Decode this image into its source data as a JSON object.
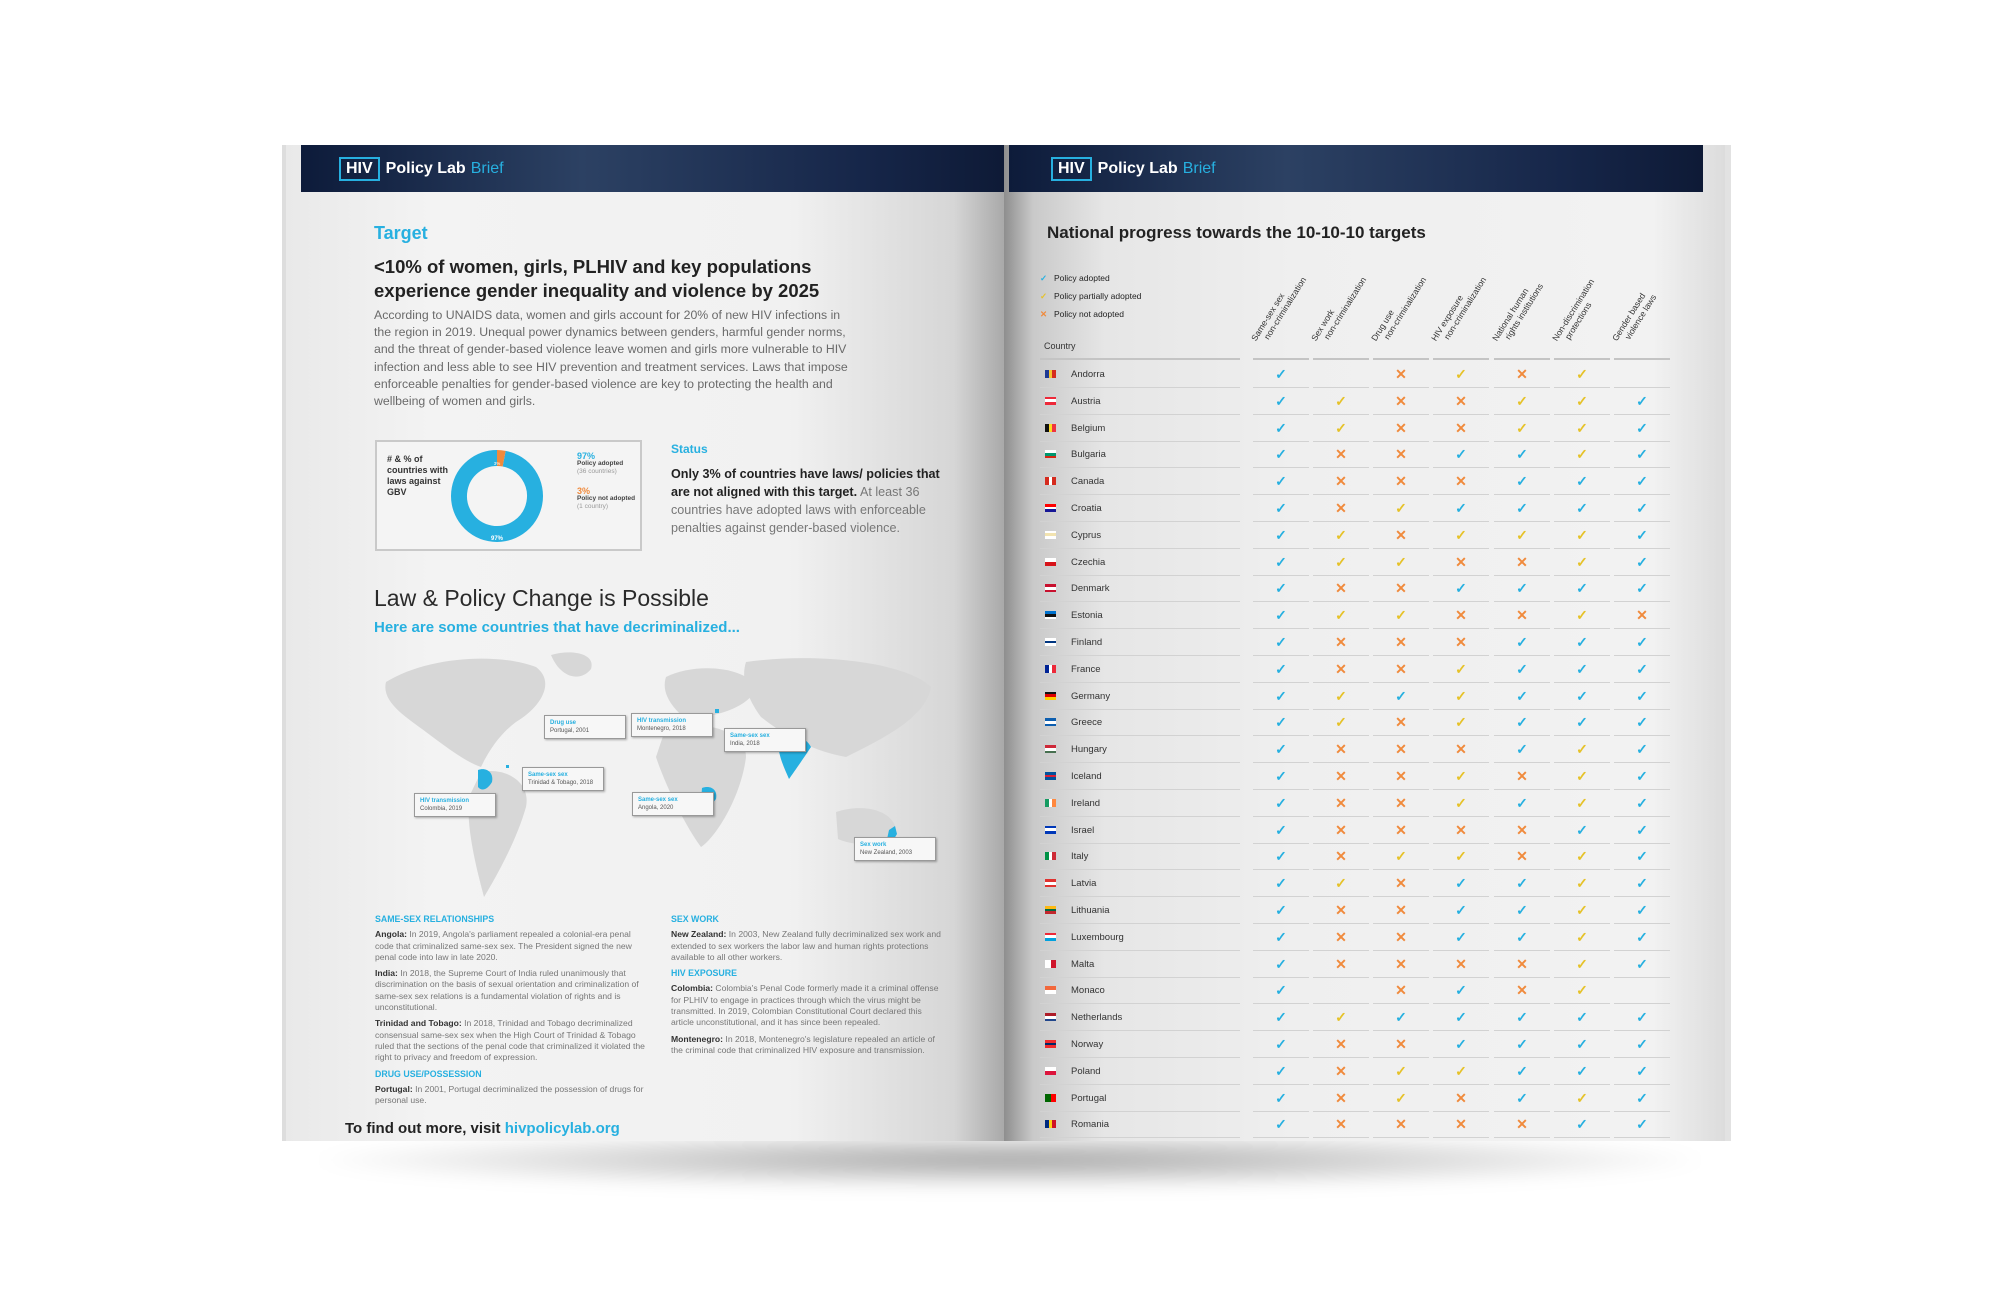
{
  "brand": {
    "box": "HIV",
    "name": "Policy Lab",
    "suffix": "Brief"
  },
  "colors": {
    "adopted": "#27b0e0",
    "partial": "#e6c229",
    "not": "#f08a3c",
    "navy": "#13234a"
  },
  "left": {
    "target_label": "Target",
    "headline": "<10% of women, girls, PLHIV and key populations experience gender inequality and violence by 2025",
    "body": "According to UNAIDS data, women and girls account for 20% of new HIV infections in the region in 2019. Unequal power dynamics between genders, harmful gender norms, and the threat of gender-based violence leave women and girls more vulnerable to HIV infection and less able to see HIV prevention and treatment services. Laws that impose enforceable penalties for gender-based violence are key to protecting the health and wellbeing of women and girls.",
    "donut": {
      "label": "# & % of countries with laws against GBV",
      "adopted_pct": 97,
      "not_pct": 3,
      "adopted_pct_label": "97%",
      "adopted_label": "Policy adopted",
      "adopted_count": "(36 countries)",
      "not_pct_label": "3%",
      "not_label": "Policy not adopted",
      "not_count": "(1 country)",
      "center_label": "97%",
      "slice_label": "3%"
    },
    "status_heading": "Status",
    "status_bold": "Only 3% of countries have laws/ policies that are not aligned with this target.",
    "status_rest": " At least 36 countries have adopted laws with enforceable penalties against gender-based violence.",
    "law_title": "Law & Policy Change is Possible",
    "law_sub": "Here are some countries that have decriminalized...",
    "callouts": [
      {
        "title": "Drug use",
        "text": "Portugal, 2001"
      },
      {
        "title": "HIV transmission",
        "text": "Montenegro, 2018"
      },
      {
        "title": "Same-sex sex",
        "text": "India, 2018"
      },
      {
        "title": "Same-sex sex",
        "text": "Trinidad & Tobago, 2018"
      },
      {
        "title": "HIV transmission",
        "text": "Colombia, 2019"
      },
      {
        "title": "Same-sex sex",
        "text": "Angola, 2020"
      },
      {
        "title": "Sex work",
        "text": "New Zealand, 2003"
      }
    ],
    "sections": {
      "same_sex": {
        "heading": "SAME-SEX RELATIONSHIPS",
        "items": [
          {
            "country": "Angola:",
            "text": " In 2019, Angola's parliament repealed a colonial-era penal code that criminalized same-sex sex. The President signed the new penal code into law in late 2020."
          },
          {
            "country": "India:",
            "text": " In 2018, the Supreme Court of India ruled unanimously that discrimination on the basis of sexual orientation and criminalization of same-sex sex relations is a fundamental violation of rights and is unconstitutional."
          },
          {
            "country": "Trinidad and Tobago:",
            "text": " In 2018, Trinidad and Tobago decriminalized consensual same-sex sex when the High Court of Trinidad & Tobago ruled that the sections of the penal code that criminalized it violated the right to privacy and freedom of expression."
          }
        ]
      },
      "drug": {
        "heading": "DRUG USE/POSSESSION",
        "items": [
          {
            "country": "Portugal:",
            "text": " In 2001, Portugal decriminalized the possession of drugs for personal use."
          }
        ]
      },
      "sex_work": {
        "heading": "SEX WORK",
        "items": [
          {
            "country": "New Zealand:",
            "text": " In 2003, New Zealand fully decriminalized sex work and extended to sex workers the labor law and human rights protections available to all other workers."
          }
        ]
      },
      "hiv": {
        "heading": "HIV EXPOSURE",
        "items": [
          {
            "country": "Colombia:",
            "text": " Colombia's Penal Code formerly made it a criminal offense for PLHIV to engage in practices through which the virus might be transmitted. In 2019, Colombian Constitutional Court declared this article unconstitutional, and it has since been repealed."
          },
          {
            "country": "Montenegro:",
            "text": " In 2018, Montenegro's legislature repealed an article of the criminal code that criminalized HIV exposure and transmission."
          }
        ]
      }
    },
    "footer_text": "To find out more, visit ",
    "footer_link": "hivpolicylab.org"
  },
  "right": {
    "title": "National progress towards the 10-10-10 targets",
    "legend": [
      {
        "key": "a",
        "label": "Policy adopted"
      },
      {
        "key": "p",
        "label": "Policy partially adopted"
      },
      {
        "key": "n",
        "label": "Policy not adopted"
      }
    ],
    "country_header": "Country",
    "columns": [
      [
        "Same-sex sex",
        "non-criminalization"
      ],
      [
        "Sex work",
        "non-criminalization"
      ],
      [
        "Drug use",
        "non-criminalization"
      ],
      [
        "HIV exposure",
        "non-criminalization"
      ],
      [
        "National human",
        "rights institutions"
      ],
      [
        "Non-discrimination",
        "protections"
      ],
      [
        "Gender based",
        "violence laws"
      ]
    ],
    "rows": [
      {
        "country": "Andorra",
        "flag": {
          "dir": "v",
          "c": [
            "#1f3a93",
            "#f4c430",
            "#d52b1e"
          ]
        },
        "s": [
          "a",
          "",
          "n",
          "p",
          "n",
          "p",
          ""
        ]
      },
      {
        "country": "Austria",
        "flag": {
          "dir": "h",
          "c": [
            "#ed2939",
            "#ffffff",
            "#ed2939"
          ]
        },
        "s": [
          "a",
          "p",
          "n",
          "n",
          "p",
          "p",
          "a"
        ]
      },
      {
        "country": "Belgium",
        "flag": {
          "dir": "v",
          "c": [
            "#111111",
            "#fdda24",
            "#ef3340"
          ]
        },
        "s": [
          "a",
          "p",
          "n",
          "n",
          "p",
          "p",
          "a"
        ]
      },
      {
        "country": "Bulgaria",
        "flag": {
          "dir": "h",
          "c": [
            "#ffffff",
            "#00966e",
            "#d62612"
          ]
        },
        "s": [
          "a",
          "n",
          "n",
          "a",
          "a",
          "p",
          "a"
        ]
      },
      {
        "country": "Canada",
        "flag": {
          "dir": "v",
          "c": [
            "#d52b1e",
            "#ffffff",
            "#d52b1e"
          ]
        },
        "s": [
          "a",
          "n",
          "n",
          "n",
          "a",
          "a",
          "a"
        ]
      },
      {
        "country": "Croatia",
        "flag": {
          "dir": "h",
          "c": [
            "#ff0000",
            "#ffffff",
            "#171796"
          ]
        },
        "s": [
          "a",
          "n",
          "p",
          "a",
          "a",
          "a",
          "a"
        ]
      },
      {
        "country": "Cyprus",
        "flag": {
          "dir": "h",
          "c": [
            "#ffffff",
            "#f2e3b0",
            "#ffffff"
          ]
        },
        "s": [
          "a",
          "p",
          "n",
          "p",
          "p",
          "p",
          "a"
        ]
      },
      {
        "country": "Czechia",
        "flag": {
          "dir": "h",
          "c": [
            "#ffffff",
            "#d7141a"
          ]
        },
        "s": [
          "a",
          "p",
          "p",
          "n",
          "n",
          "p",
          "a"
        ]
      },
      {
        "country": "Denmark",
        "flag": {
          "dir": "h",
          "c": [
            "#c8102e",
            "#ffffff",
            "#c8102e"
          ]
        },
        "s": [
          "a",
          "n",
          "n",
          "a",
          "a",
          "a",
          "a"
        ]
      },
      {
        "country": "Estonia",
        "flag": {
          "dir": "h",
          "c": [
            "#0072ce",
            "#111111",
            "#ffffff"
          ]
        },
        "s": [
          "a",
          "p",
          "p",
          "n",
          "n",
          "p",
          "n"
        ]
      },
      {
        "country": "Finland",
        "flag": {
          "dir": "h",
          "c": [
            "#ffffff",
            "#003580",
            "#ffffff"
          ]
        },
        "s": [
          "a",
          "n",
          "n",
          "n",
          "a",
          "a",
          "a"
        ]
      },
      {
        "country": "France",
        "flag": {
          "dir": "v",
          "c": [
            "#002395",
            "#ffffff",
            "#ed2939"
          ]
        },
        "s": [
          "a",
          "n",
          "n",
          "p",
          "a",
          "a",
          "a"
        ]
      },
      {
        "country": "Germany",
        "flag": {
          "dir": "h",
          "c": [
            "#111111",
            "#dd0000",
            "#ffce00"
          ]
        },
        "s": [
          "a",
          "p",
          "a",
          "p",
          "a",
          "a",
          "a"
        ]
      },
      {
        "country": "Greece",
        "flag": {
          "dir": "h",
          "c": [
            "#0d5eaf",
            "#ffffff",
            "#0d5eaf"
          ]
        },
        "s": [
          "a",
          "p",
          "n",
          "p",
          "a",
          "a",
          "a"
        ]
      },
      {
        "country": "Hungary",
        "flag": {
          "dir": "h",
          "c": [
            "#ce2939",
            "#ffffff",
            "#477050"
          ]
        },
        "s": [
          "a",
          "n",
          "n",
          "n",
          "a",
          "p",
          "a"
        ]
      },
      {
        "country": "Iceland",
        "flag": {
          "dir": "h",
          "c": [
            "#02529c",
            "#dc1e35",
            "#02529c"
          ]
        },
        "s": [
          "a",
          "n",
          "n",
          "p",
          "n",
          "p",
          "a"
        ]
      },
      {
        "country": "Ireland",
        "flag": {
          "dir": "v",
          "c": [
            "#169b62",
            "#ffffff",
            "#ff883e"
          ]
        },
        "s": [
          "a",
          "n",
          "n",
          "p",
          "a",
          "p",
          "a"
        ]
      },
      {
        "country": "Israel",
        "flag": {
          "dir": "h",
          "c": [
            "#0038b8",
            "#ffffff",
            "#0038b8"
          ]
        },
        "s": [
          "a",
          "n",
          "n",
          "n",
          "n",
          "a",
          "a"
        ]
      },
      {
        "country": "Italy",
        "flag": {
          "dir": "v",
          "c": [
            "#009246",
            "#ffffff",
            "#ce2b37"
          ]
        },
        "s": [
          "a",
          "n",
          "p",
          "p",
          "n",
          "p",
          "a"
        ]
      },
      {
        "country": "Latvia",
        "flag": {
          "dir": "h",
          "c": [
            "#e0322f",
            "#ffffff",
            "#e0322f"
          ]
        },
        "s": [
          "a",
          "p",
          "n",
          "a",
          "a",
          "p",
          "a"
        ]
      },
      {
        "country": "Lithuania",
        "flag": {
          "dir": "h",
          "c": [
            "#fdb913",
            "#006a44",
            "#c1272d"
          ]
        },
        "s": [
          "a",
          "n",
          "n",
          "a",
          "a",
          "p",
          "a"
        ]
      },
      {
        "country": "Luxembourg",
        "flag": {
          "dir": "h",
          "c": [
            "#ed2939",
            "#ffffff",
            "#00a1de"
          ]
        },
        "s": [
          "a",
          "n",
          "n",
          "a",
          "a",
          "p",
          "a"
        ]
      },
      {
        "country": "Malta",
        "flag": {
          "dir": "v",
          "c": [
            "#ffffff",
            "#cf142b"
          ]
        },
        "s": [
          "a",
          "n",
          "n",
          "n",
          "n",
          "p",
          "a"
        ]
      },
      {
        "country": "Monaco",
        "flag": {
          "dir": "h",
          "c": [
            "#f2683c",
            "#ffffff"
          ]
        },
        "s": [
          "a",
          "",
          "n",
          "a",
          "n",
          "p",
          ""
        ]
      },
      {
        "country": "Netherlands",
        "flag": {
          "dir": "h",
          "c": [
            "#ae1c28",
            "#ffffff",
            "#21468b"
          ]
        },
        "s": [
          "a",
          "p",
          "a",
          "a",
          "a",
          "a",
          "a"
        ]
      },
      {
        "country": "Norway",
        "flag": {
          "dir": "h",
          "c": [
            "#ef2b2d",
            "#002868",
            "#ef2b2d"
          ]
        },
        "s": [
          "a",
          "n",
          "n",
          "a",
          "a",
          "a",
          "a"
        ]
      },
      {
        "country": "Poland",
        "flag": {
          "dir": "h",
          "c": [
            "#ffffff",
            "#dc143c"
          ]
        },
        "s": [
          "a",
          "n",
          "p",
          "p",
          "a",
          "a",
          "a"
        ]
      },
      {
        "country": "Portugal",
        "flag": {
          "dir": "v",
          "c": [
            "#006600",
            "#ff0000"
          ]
        },
        "s": [
          "a",
          "n",
          "p",
          "n",
          "a",
          "p",
          "a"
        ]
      },
      {
        "country": "Romania",
        "flag": {
          "dir": "v",
          "c": [
            "#002b7f",
            "#fcd116",
            "#ce1126"
          ]
        },
        "s": [
          "a",
          "n",
          "n",
          "n",
          "n",
          "a",
          "a"
        ]
      }
    ]
  }
}
